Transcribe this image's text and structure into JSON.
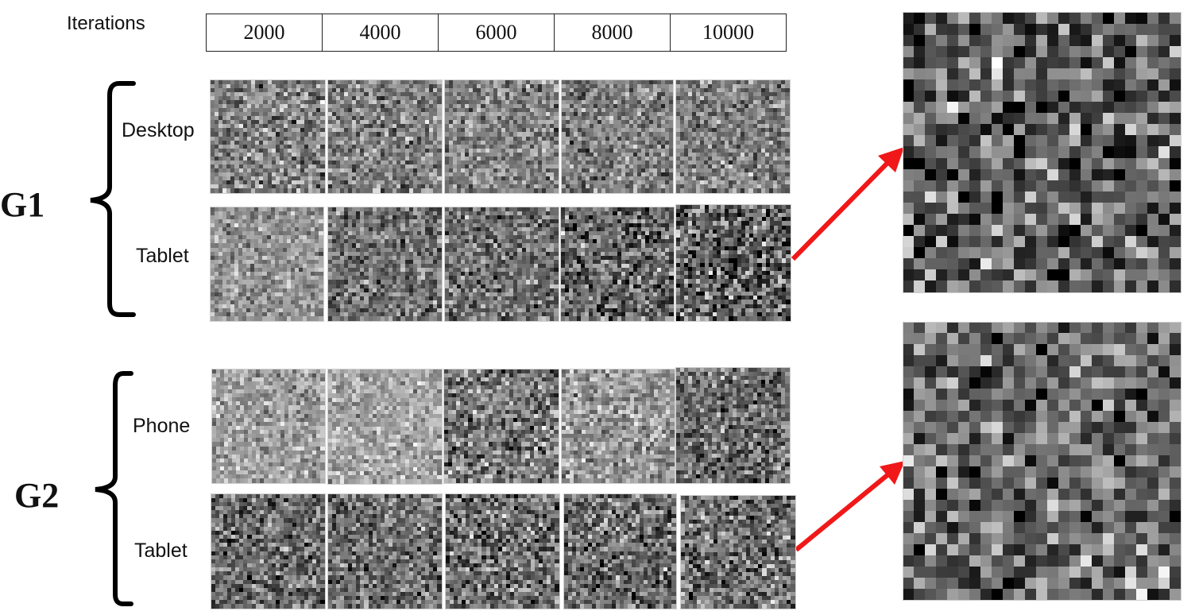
{
  "header": {
    "iterations_label": "Iterations",
    "iterations": [
      "2000",
      "4000",
      "6000",
      "8000",
      "10000"
    ]
  },
  "groups": [
    {
      "label": "G1",
      "rows": [
        {
          "label": "Desktop",
          "tiles": 5
        },
        {
          "label": "Tablet",
          "tiles": 5
        }
      ]
    },
    {
      "label": "G2",
      "rows": [
        {
          "label": "Phone",
          "tiles": 5
        },
        {
          "label": "Tablet",
          "tiles": 5
        }
      ]
    }
  ],
  "colors": {
    "arrow": "#f01818",
    "bracket": "#000000",
    "table_border": "#222222"
  }
}
